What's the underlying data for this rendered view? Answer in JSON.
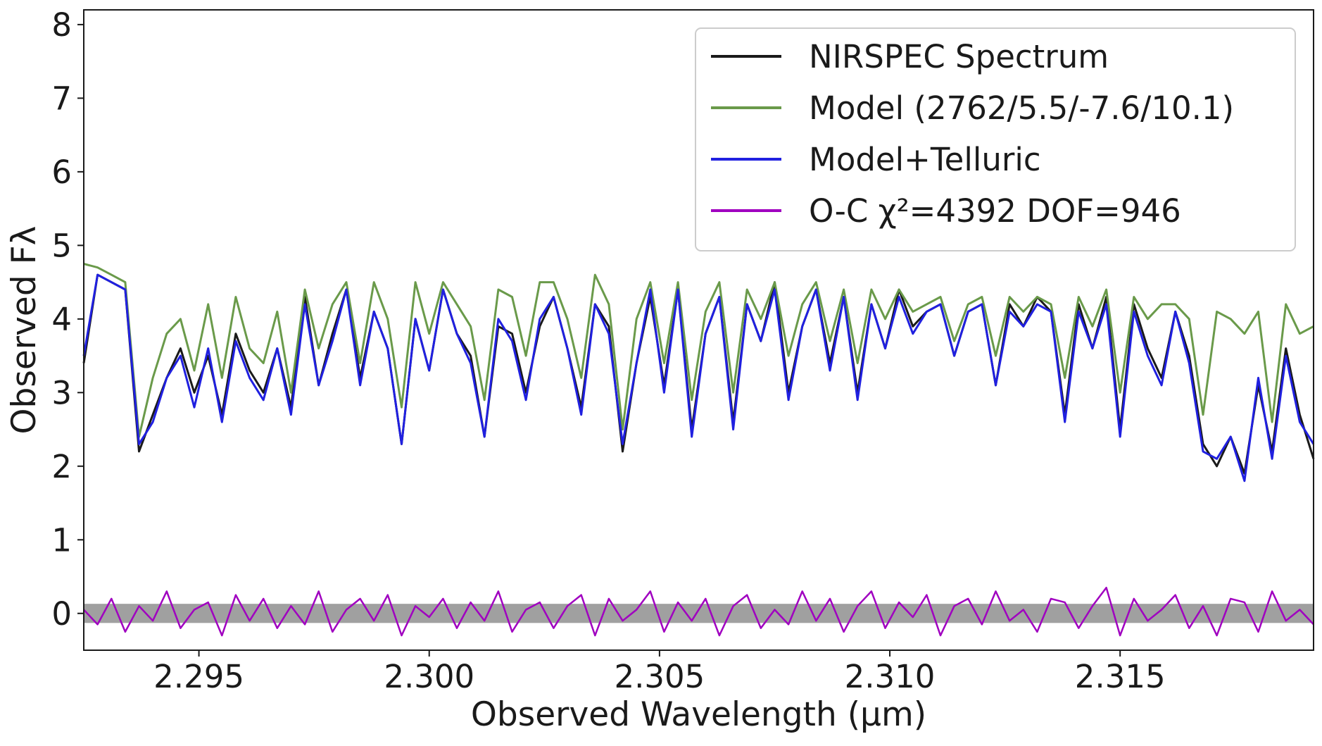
{
  "chart_data": {
    "type": "line",
    "xlabel": "Observed Wavelength (μm)",
    "ylabel": "Observed Fλ",
    "xlim": [
      2.2925,
      2.3192
    ],
    "ylim": [
      -0.5,
      8.2
    ],
    "x_ticks": [
      2.295,
      2.3,
      2.305,
      2.31,
      2.315
    ],
    "x_tick_labels": [
      "2.295",
      "2.300",
      "2.305",
      "2.310",
      "2.315"
    ],
    "y_ticks": [
      0,
      1,
      2,
      3,
      4,
      5,
      6,
      7,
      8
    ],
    "y_tick_labels": [
      "0",
      "1",
      "2",
      "3",
      "4",
      "5",
      "6",
      "7",
      "8"
    ],
    "legend_position": "top-right",
    "series": [
      {
        "name": "NIRSPEC Spectrum",
        "color": "#1a1a1a",
        "x": [
          2.2925,
          2.2928,
          2.2931,
          2.2934,
          2.2937,
          2.294,
          2.2943,
          2.2946,
          2.2949,
          2.2952,
          2.2955,
          2.2958,
          2.2961,
          2.2964,
          2.2967,
          2.297,
          2.2973,
          2.2976,
          2.2979,
          2.2982,
          2.2985,
          2.2988,
          2.2991,
          2.2994,
          2.2997,
          2.3,
          2.3003,
          2.3006,
          2.3009,
          2.3012,
          2.3015,
          2.3018,
          2.3021,
          2.3024,
          2.3027,
          2.303,
          2.3033,
          2.3036,
          2.3039,
          2.3042,
          2.3045,
          2.3048,
          2.3051,
          2.3054,
          2.3057,
          2.306,
          2.3063,
          2.3066,
          2.3069,
          2.3072,
          2.3075,
          2.3078,
          2.3081,
          2.3084,
          2.3087,
          2.309,
          2.3093,
          2.3096,
          2.3099,
          2.3102,
          2.3105,
          2.3108,
          2.3111,
          2.3114,
          2.3117,
          2.312,
          2.3123,
          2.3126,
          2.3129,
          2.3132,
          2.3135,
          2.3138,
          2.3141,
          2.3144,
          2.3147,
          2.315,
          2.3153,
          2.3156,
          2.3159,
          2.3162,
          2.3165,
          2.3168,
          2.3171,
          2.3174,
          2.3177,
          2.318,
          2.3183,
          2.3186,
          2.3189,
          2.3192
        ],
        "y": [
          3.4,
          4.6,
          4.5,
          4.4,
          2.2,
          2.7,
          3.2,
          3.6,
          3.0,
          3.5,
          2.7,
          3.8,
          3.3,
          3.0,
          3.6,
          2.8,
          4.3,
          3.1,
          3.8,
          4.4,
          3.2,
          4.1,
          3.6,
          2.3,
          4.0,
          3.3,
          4.4,
          3.8,
          3.5,
          2.4,
          3.9,
          3.8,
          3.0,
          3.9,
          4.3,
          3.6,
          2.8,
          4.2,
          3.9,
          2.2,
          3.4,
          4.3,
          3.1,
          4.4,
          2.5,
          3.8,
          4.3,
          2.6,
          4.2,
          3.7,
          4.5,
          3.0,
          3.9,
          4.4,
          3.4,
          4.3,
          3.0,
          4.2,
          3.6,
          4.4,
          3.9,
          4.1,
          4.2,
          3.5,
          4.1,
          4.2,
          3.1,
          4.2,
          3.9,
          4.3,
          4.1,
          2.7,
          4.2,
          3.6,
          4.3,
          2.5,
          4.2,
          3.6,
          3.2,
          4.1,
          3.5,
          2.3,
          2.0,
          2.4,
          1.9,
          3.1,
          2.2,
          3.6,
          2.7,
          2.1
        ]
      },
      {
        "name": "Model (2762/5.5/-7.6/10.1)",
        "color": "#6a9a4a",
        "x": [
          2.2925,
          2.2928,
          2.2931,
          2.2934,
          2.2937,
          2.294,
          2.2943,
          2.2946,
          2.2949,
          2.2952,
          2.2955,
          2.2958,
          2.2961,
          2.2964,
          2.2967,
          2.297,
          2.2973,
          2.2976,
          2.2979,
          2.2982,
          2.2985,
          2.2988,
          2.2991,
          2.2994,
          2.2997,
          2.3,
          2.3003,
          2.3006,
          2.3009,
          2.3012,
          2.3015,
          2.3018,
          2.3021,
          2.3024,
          2.3027,
          2.303,
          2.3033,
          2.3036,
          2.3039,
          2.3042,
          2.3045,
          2.3048,
          2.3051,
          2.3054,
          2.3057,
          2.306,
          2.3063,
          2.3066,
          2.3069,
          2.3072,
          2.3075,
          2.3078,
          2.3081,
          2.3084,
          2.3087,
          2.309,
          2.3093,
          2.3096,
          2.3099,
          2.3102,
          2.3105,
          2.3108,
          2.3111,
          2.3114,
          2.3117,
          2.312,
          2.3123,
          2.3126,
          2.3129,
          2.3132,
          2.3135,
          2.3138,
          2.3141,
          2.3144,
          2.3147,
          2.315,
          2.3153,
          2.3156,
          2.3159,
          2.3162,
          2.3165,
          2.3168,
          2.3171,
          2.3174,
          2.3177,
          2.318,
          2.3183,
          2.3186,
          2.3189,
          2.3192
        ],
        "y": [
          4.75,
          4.7,
          4.6,
          4.5,
          2.4,
          3.2,
          3.8,
          4.0,
          3.3,
          4.2,
          3.2,
          4.3,
          3.6,
          3.4,
          4.1,
          3.0,
          4.4,
          3.6,
          4.2,
          4.5,
          3.4,
          4.5,
          4.0,
          2.8,
          4.5,
          3.8,
          4.5,
          4.2,
          3.9,
          2.9,
          4.4,
          4.3,
          3.5,
          4.5,
          4.5,
          4.0,
          3.2,
          4.6,
          4.2,
          2.5,
          4.0,
          4.5,
          3.4,
          4.5,
          2.9,
          4.1,
          4.5,
          3.0,
          4.4,
          4.0,
          4.5,
          3.5,
          4.2,
          4.5,
          3.7,
          4.4,
          3.4,
          4.4,
          4.0,
          4.4,
          4.1,
          4.2,
          4.3,
          3.7,
          4.2,
          4.3,
          3.5,
          4.3,
          4.1,
          4.3,
          4.2,
          3.2,
          4.3,
          3.9,
          4.4,
          3.0,
          4.3,
          4.0,
          4.2,
          4.2,
          4.0,
          2.7,
          4.1,
          4.0,
          3.8,
          4.1,
          2.6,
          4.2,
          3.8,
          3.9
        ]
      },
      {
        "name": "Model+Telluric",
        "color": "#2020e0",
        "x": [
          2.2925,
          2.2928,
          2.2931,
          2.2934,
          2.2937,
          2.294,
          2.2943,
          2.2946,
          2.2949,
          2.2952,
          2.2955,
          2.2958,
          2.2961,
          2.2964,
          2.2967,
          2.297,
          2.2973,
          2.2976,
          2.2979,
          2.2982,
          2.2985,
          2.2988,
          2.2991,
          2.2994,
          2.2997,
          2.3,
          2.3003,
          2.3006,
          2.3009,
          2.3012,
          2.3015,
          2.3018,
          2.3021,
          2.3024,
          2.3027,
          2.303,
          2.3033,
          2.3036,
          2.3039,
          2.3042,
          2.3045,
          2.3048,
          2.3051,
          2.3054,
          2.3057,
          2.306,
          2.3063,
          2.3066,
          2.3069,
          2.3072,
          2.3075,
          2.3078,
          2.3081,
          2.3084,
          2.3087,
          2.309,
          2.3093,
          2.3096,
          2.3099,
          2.3102,
          2.3105,
          2.3108,
          2.3111,
          2.3114,
          2.3117,
          2.312,
          2.3123,
          2.3126,
          2.3129,
          2.3132,
          2.3135,
          2.3138,
          2.3141,
          2.3144,
          2.3147,
          2.315,
          2.3153,
          2.3156,
          2.3159,
          2.3162,
          2.3165,
          2.3168,
          2.3171,
          2.3174,
          2.3177,
          2.318,
          2.3183,
          2.3186,
          2.3189,
          2.3192
        ],
        "y": [
          3.5,
          4.6,
          4.5,
          4.4,
          2.3,
          2.6,
          3.2,
          3.5,
          2.8,
          3.6,
          2.6,
          3.7,
          3.2,
          2.9,
          3.6,
          2.7,
          4.2,
          3.1,
          3.7,
          4.4,
          3.1,
          4.1,
          3.6,
          2.3,
          4.0,
          3.3,
          4.4,
          3.8,
          3.4,
          2.4,
          4.0,
          3.7,
          2.9,
          4.0,
          4.3,
          3.6,
          2.7,
          4.2,
          3.8,
          2.3,
          3.4,
          4.4,
          3.0,
          4.4,
          2.4,
          3.8,
          4.3,
          2.5,
          4.2,
          3.7,
          4.4,
          2.9,
          3.9,
          4.4,
          3.3,
          4.3,
          2.9,
          4.2,
          3.6,
          4.3,
          3.8,
          4.1,
          4.2,
          3.5,
          4.1,
          4.2,
          3.1,
          4.1,
          3.9,
          4.2,
          4.1,
          2.6,
          4.1,
          3.6,
          4.2,
          2.4,
          4.1,
          3.5,
          3.1,
          4.1,
          3.4,
          2.2,
          2.1,
          2.4,
          1.8,
          3.2,
          2.1,
          3.5,
          2.6,
          2.3
        ]
      },
      {
        "name": "O-C χ²=4392 DOF=946",
        "color": "#a000c0",
        "x": [
          2.2925,
          2.2928,
          2.2931,
          2.2934,
          2.2937,
          2.294,
          2.2943,
          2.2946,
          2.2949,
          2.2952,
          2.2955,
          2.2958,
          2.2961,
          2.2964,
          2.2967,
          2.297,
          2.2973,
          2.2976,
          2.2979,
          2.2982,
          2.2985,
          2.2988,
          2.2991,
          2.2994,
          2.2997,
          2.3,
          2.3003,
          2.3006,
          2.3009,
          2.3012,
          2.3015,
          2.3018,
          2.3021,
          2.3024,
          2.3027,
          2.303,
          2.3033,
          2.3036,
          2.3039,
          2.3042,
          2.3045,
          2.3048,
          2.3051,
          2.3054,
          2.3057,
          2.306,
          2.3063,
          2.3066,
          2.3069,
          2.3072,
          2.3075,
          2.3078,
          2.3081,
          2.3084,
          2.3087,
          2.309,
          2.3093,
          2.3096,
          2.3099,
          2.3102,
          2.3105,
          2.3108,
          2.3111,
          2.3114,
          2.3117,
          2.312,
          2.3123,
          2.3126,
          2.3129,
          2.3132,
          2.3135,
          2.3138,
          2.3141,
          2.3144,
          2.3147,
          2.315,
          2.3153,
          2.3156,
          2.3159,
          2.3162,
          2.3165,
          2.3168,
          2.3171,
          2.3174,
          2.3177,
          2.318,
          2.3183,
          2.3186,
          2.3189,
          2.3192
        ],
        "y": [
          0.05,
          -0.15,
          0.2,
          -0.25,
          0.1,
          -0.1,
          0.3,
          -0.2,
          0.05,
          0.15,
          -0.3,
          0.25,
          -0.1,
          0.2,
          -0.2,
          0.1,
          -0.15,
          0.3,
          -0.25,
          0.05,
          0.2,
          -0.1,
          0.25,
          -0.3,
          0.1,
          -0.05,
          0.2,
          -0.2,
          0.15,
          -0.1,
          0.3,
          -0.25,
          0.05,
          0.15,
          -0.2,
          0.1,
          0.25,
          -0.3,
          0.2,
          -0.1,
          0.05,
          0.3,
          -0.25,
          0.15,
          -0.1,
          0.2,
          -0.3,
          0.1,
          0.25,
          -0.2,
          0.05,
          -0.15,
          0.3,
          -0.1,
          0.2,
          -0.25,
          0.1,
          0.3,
          -0.2,
          0.15,
          -0.05,
          0.25,
          -0.3,
          0.1,
          0.2,
          -0.15,
          0.3,
          -0.1,
          0.05,
          -0.25,
          0.2,
          0.15,
          -0.2,
          0.1,
          0.35,
          -0.3,
          0.2,
          -0.1,
          0.05,
          0.25,
          -0.2,
          0.1,
          -0.3,
          0.2,
          0.15,
          -0.25,
          0.3,
          -0.1,
          0.05,
          -0.15
        ]
      }
    ],
    "band": {
      "color": "#a0a0a0",
      "halfwidth": 0.13
    }
  }
}
